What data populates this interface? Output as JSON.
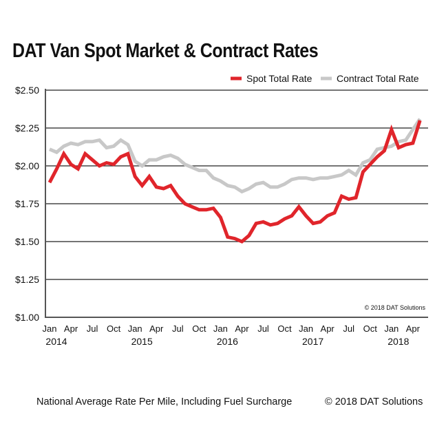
{
  "chart_data": {
    "type": "line",
    "title": "DAT Van Spot Market & Contract Rates",
    "ylim": [
      1.0,
      2.5
    ],
    "yticks": [
      "$1.00",
      "$1.25",
      "$1.50",
      "$1.75",
      "$2.00",
      "$2.25",
      "$2.50"
    ],
    "ytick_values": [
      1.0,
      1.25,
      1.5,
      1.75,
      2.0,
      2.25,
      2.5
    ],
    "x_start": "2014-01",
    "x_end": "2018-05",
    "xtick_labels": [
      "Jan",
      "Apr",
      "Jul",
      "Oct",
      "Jan",
      "Apr",
      "Jul",
      "Oct",
      "Jan",
      "Apr",
      "Jul",
      "Oct",
      "Jan",
      "Apr",
      "Jul",
      "Oct",
      "Jan",
      "Apr"
    ],
    "year_labels": [
      "2014",
      "2015",
      "2016",
      "2017",
      "2018"
    ],
    "grid": true,
    "legend_placement": "top-right",
    "annotation": "© 2018 DAT Solutions",
    "series": [
      {
        "name": "Spot Total Rate",
        "color": "#e0252b",
        "values": [
          1.89,
          1.98,
          2.08,
          2.01,
          1.98,
          2.08,
          2.04,
          2.0,
          2.02,
          2.01,
          2.06,
          2.08,
          1.93,
          1.87,
          1.93,
          1.86,
          1.85,
          1.87,
          1.8,
          1.75,
          1.73,
          1.71,
          1.71,
          1.72,
          1.66,
          1.53,
          1.52,
          1.5,
          1.54,
          1.62,
          1.63,
          1.61,
          1.62,
          1.65,
          1.67,
          1.73,
          1.67,
          1.62,
          1.63,
          1.67,
          1.69,
          1.8,
          1.78,
          1.79,
          1.96,
          2.01,
          2.06,
          2.1,
          2.24,
          2.12,
          2.14,
          2.15,
          2.3
        ]
      },
      {
        "name": "Contract Total Rate",
        "color": "#c8c8c8",
        "values": [
          2.11,
          2.09,
          2.13,
          2.15,
          2.14,
          2.16,
          2.16,
          2.17,
          2.12,
          2.13,
          2.17,
          2.14,
          2.03,
          2.0,
          2.04,
          2.04,
          2.06,
          2.07,
          2.05,
          2.01,
          1.99,
          1.97,
          1.97,
          1.92,
          1.9,
          1.87,
          1.86,
          1.83,
          1.85,
          1.88,
          1.89,
          1.86,
          1.86,
          1.88,
          1.91,
          1.92,
          1.92,
          1.91,
          1.92,
          1.92,
          1.93,
          1.94,
          1.97,
          1.94,
          2.02,
          2.04,
          2.11,
          2.12,
          2.13,
          2.16,
          2.17,
          2.24,
          2.31
        ]
      }
    ]
  },
  "footer": {
    "note": "National Average Rate Per Mile, Including Fuel Surcharge",
    "copyright": "© 2018 DAT Solutions"
  }
}
